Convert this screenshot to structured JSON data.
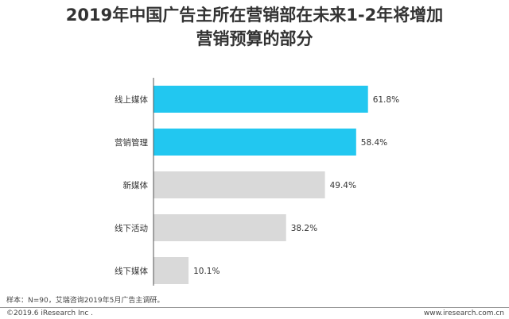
{
  "title_line1": "2019年中国广告主所在营销部在未来1-2年将增加",
  "title_line2": "营销预算的部分",
  "chart_data": {
    "type": "bar",
    "orientation": "horizontal",
    "categories": [
      "线上媒体",
      "营销管理",
      "新媒体",
      "线下活动",
      "线下媒体"
    ],
    "values": [
      61.8,
      58.4,
      49.4,
      38.2,
      10.1
    ],
    "value_labels": [
      "61.8%",
      "58.4%",
      "49.4%",
      "38.2%",
      "10.1%"
    ],
    "colors": [
      "#22c7f0",
      "#22c7f0",
      "#d9d9d9",
      "#d9d9d9",
      "#d9d9d9"
    ],
    "xlim": [
      0,
      66
    ],
    "unit": "%"
  },
  "footer": {
    "source": "样本：N=90，艾瑞咨询2019年5月广告主调研。",
    "copyright": "©2019.6 iResearch Inc .",
    "website": "www.iresearch.com.cn"
  }
}
